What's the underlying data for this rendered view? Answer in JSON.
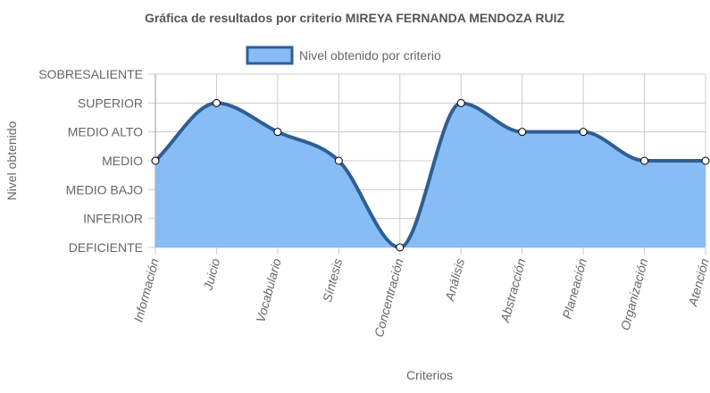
{
  "chart_data": {
    "type": "area",
    "title": "Gráfica de resultados por criterio MIREYA FERNANDA MENDOZA RUIZ",
    "xlabel": "Criterios",
    "ylabel": "Nivel obtenido",
    "y_levels": [
      "DEFICIENTE",
      "INFERIOR",
      "MEDIO BAJO",
      "MEDIO",
      "MEDIO ALTO",
      "SUPERIOR",
      "SOBRESALIENTE"
    ],
    "ylim": [
      0,
      6
    ],
    "categories": [
      "Información",
      "Juicio",
      "Vocabulario",
      "Síntesis",
      "Concentración",
      "Análisis",
      "Abstracción",
      "Planeación",
      "Organización",
      "Atención"
    ],
    "series": [
      {
        "name": "Nivel obtenido por criterio",
        "values": [
          3,
          5,
          4,
          3,
          0,
          5,
          4,
          4,
          3,
          3
        ]
      }
    ],
    "legend_position": "top",
    "grid": true,
    "colors": {
      "fill": "#88bcf5",
      "line": "#2f5e93",
      "legend_fill": "#88bcf5",
      "legend_border": "#2f5e93",
      "grid": "#cccccc",
      "axis": "#999999",
      "text": "#666666",
      "title": "#555555"
    }
  }
}
